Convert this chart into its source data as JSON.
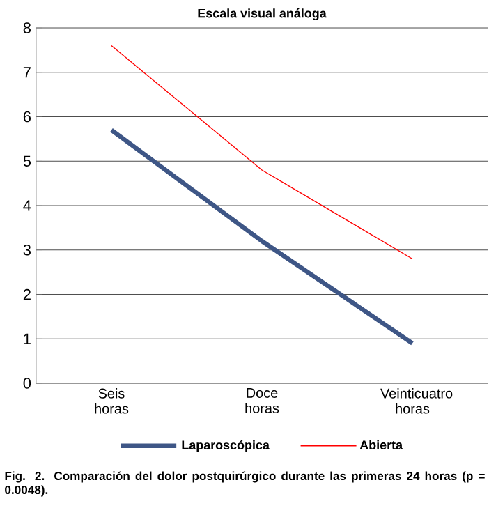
{
  "chart_data": {
    "type": "line",
    "title": "Escala visual análoga",
    "categories": [
      "Seis horas",
      "Doce horas",
      "Veinticuatro horas"
    ],
    "series": [
      {
        "name": "Laparoscópica",
        "color": "#3e5686",
        "values": [
          5.7,
          3.2,
          0.9
        ]
      },
      {
        "name": "Abierta",
        "color": "#ff0000",
        "values": [
          7.6,
          4.8,
          2.8
        ]
      }
    ],
    "ylim": [
      0,
      8
    ],
    "yticks": [
      0,
      1,
      2,
      3,
      4,
      5,
      6,
      7,
      8
    ],
    "grid": "y",
    "legend": "bottom",
    "marker": "none",
    "line_style": "solid",
    "annotations": [
      "Fig. 2. Comparación del dolor postquirúrgico durante las primeras 24 horas (p = 0.0048)."
    ]
  }
}
